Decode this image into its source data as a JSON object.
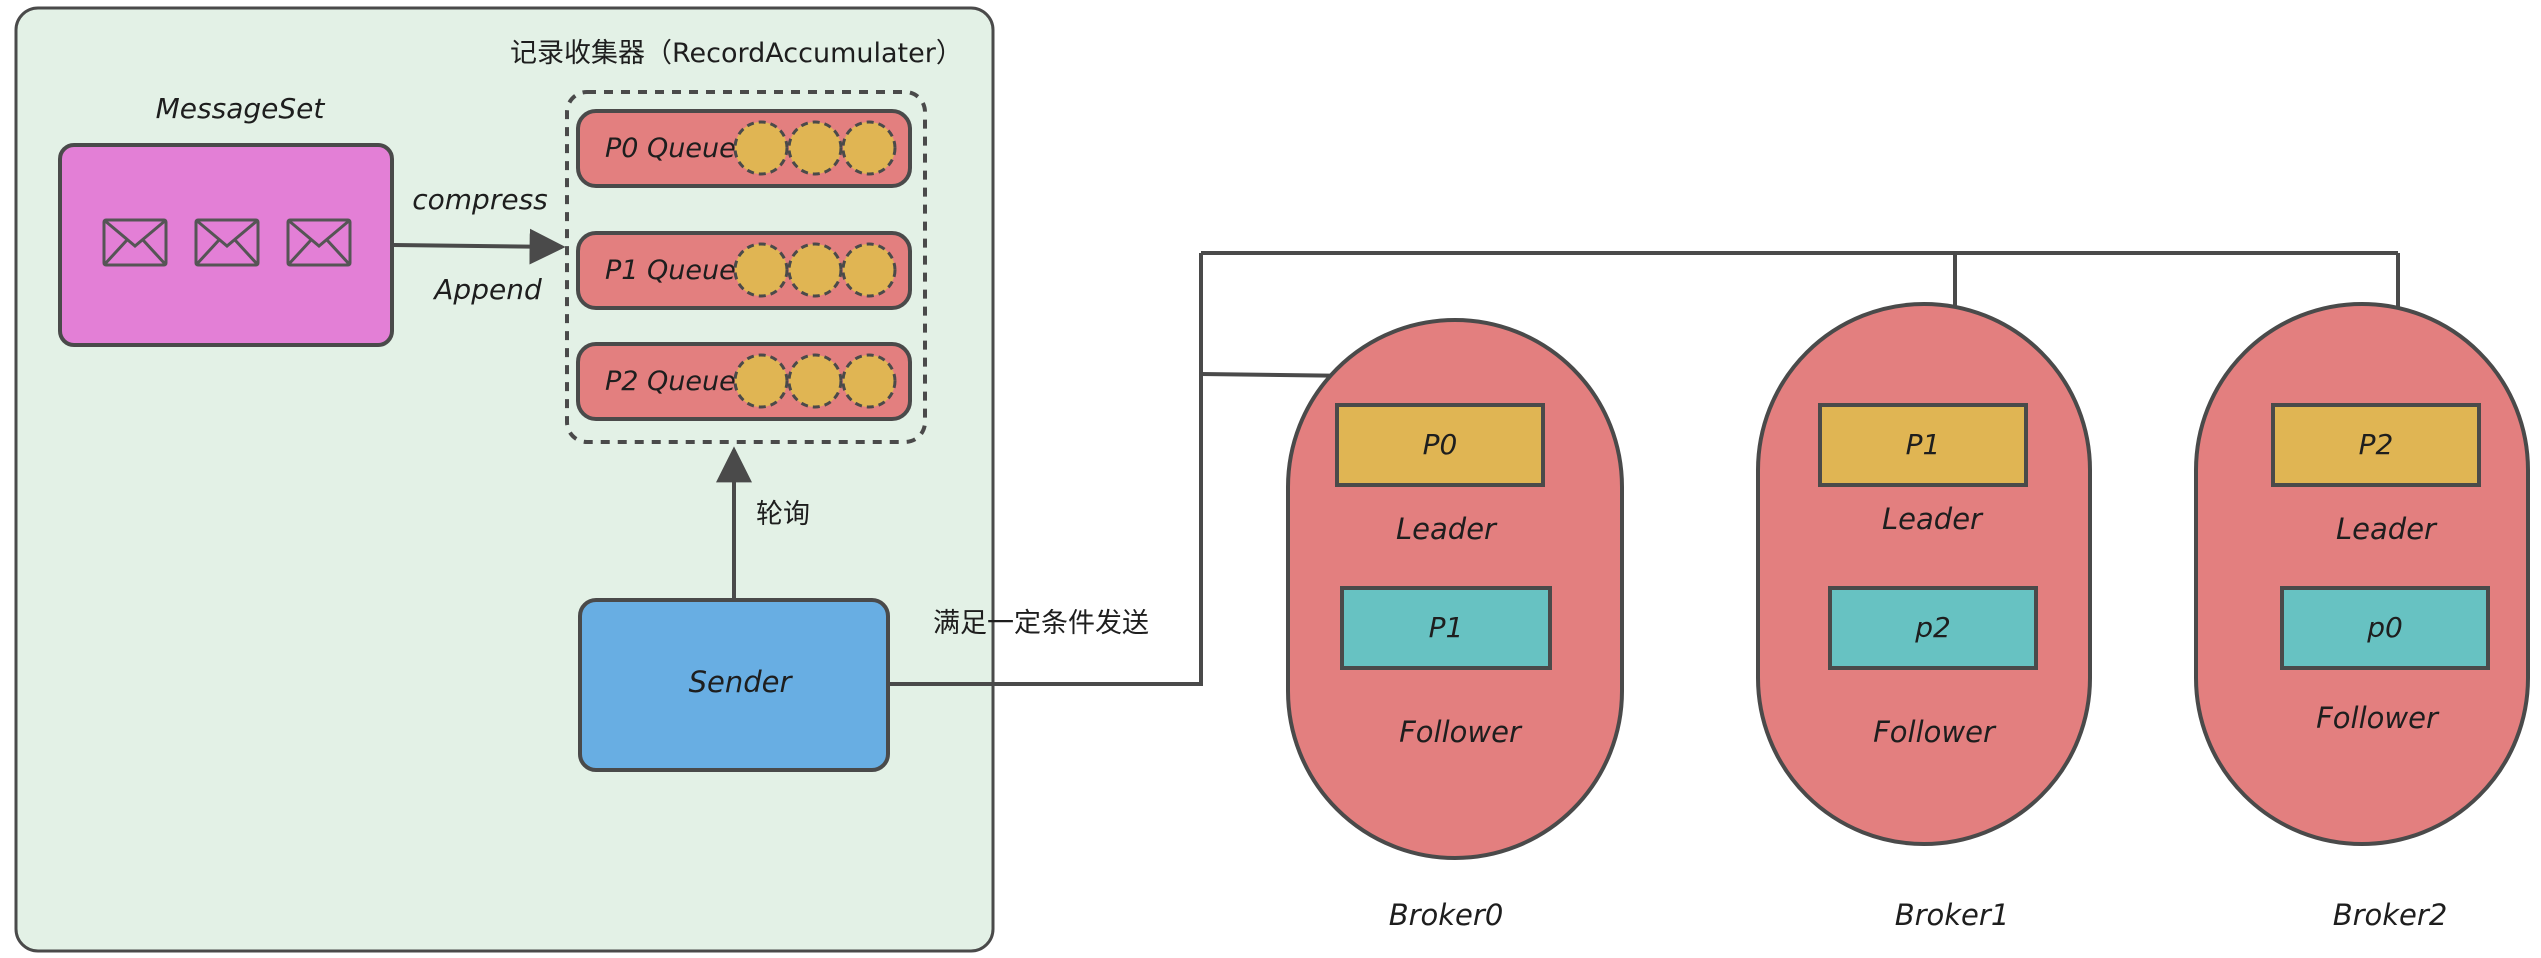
{
  "colors": {
    "producer_panel": "#e3f1e6",
    "message_set": "#e37fd6",
    "queue": "#e37f7f",
    "record": "#e0b553",
    "sender": "#68aee3",
    "broker": "#e37f7f",
    "leader": "#e0b553",
    "follower": "#67c2c2",
    "stroke": "#4a4a4a"
  },
  "producer": {
    "message_set_label": "MessageSet",
    "envelope_icon_count": 3,
    "compress_label": "compress",
    "append_label": "Append",
    "accumulator_label": "记录收集器（RecordAccumulater）",
    "queues": [
      {
        "label": "P0 Queue",
        "record_count": 3
      },
      {
        "label": "P1 Queue",
        "record_count": 3
      },
      {
        "label": "P2 Queue",
        "record_count": 3
      }
    ],
    "poll_label": "轮询",
    "sender_label": "Sender"
  },
  "send_condition_label": "满足一定条件发送",
  "brokers": [
    {
      "name": "Broker0",
      "leader_partition": "P0",
      "leader_label": "Leader",
      "follower_partition": "P1",
      "follower_label": "Follower"
    },
    {
      "name": "Broker1",
      "leader_partition": "P1",
      "leader_label": "Leader",
      "follower_partition": "p2",
      "follower_label": "Follower"
    },
    {
      "name": "Broker2",
      "leader_partition": "P2",
      "leader_label": "Leader",
      "follower_partition": "p0",
      "follower_label": "Follower"
    }
  ]
}
